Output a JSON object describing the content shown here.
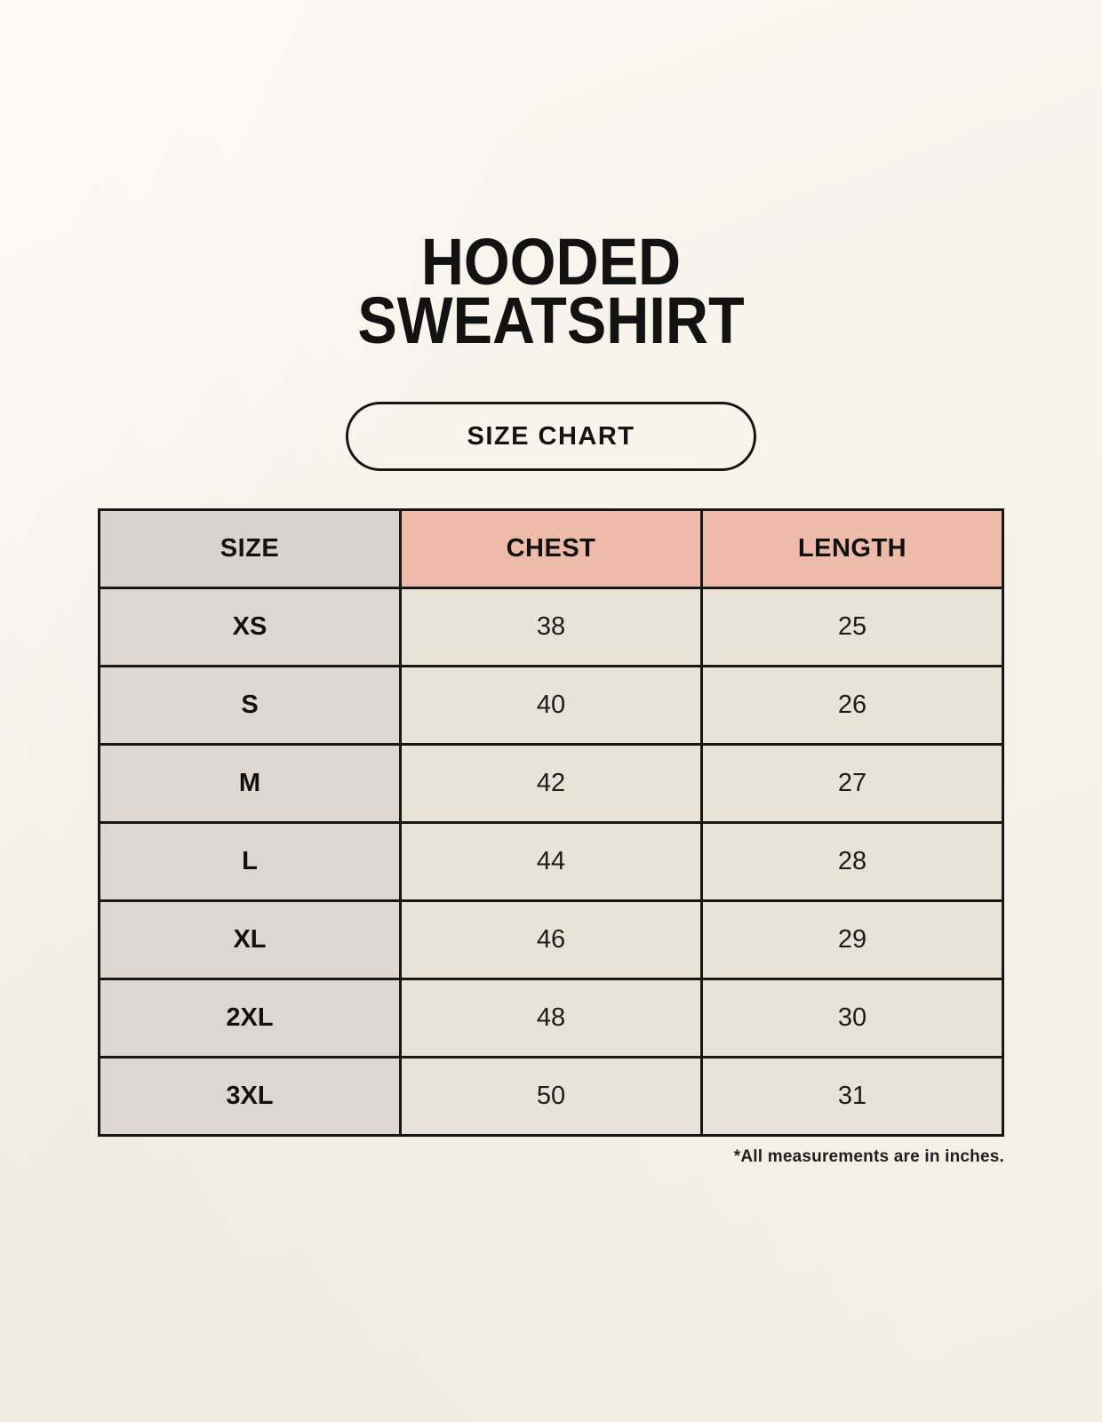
{
  "page": {
    "title_line1": "HOODED",
    "title_line2": "SWEATSHIRT",
    "badge_label": "SIZE CHART",
    "footnote": "*All measurements are in inches."
  },
  "chart_data": {
    "type": "table",
    "title": "HOODED SWEATSHIRT",
    "subtitle": "SIZE CHART",
    "columns": [
      "SIZE",
      "CHEST",
      "LENGTH"
    ],
    "rows": [
      {
        "size": "XS",
        "chest": 38,
        "length": 25
      },
      {
        "size": "S",
        "chest": 40,
        "length": 26
      },
      {
        "size": "M",
        "chest": 42,
        "length": 27
      },
      {
        "size": "L",
        "chest": 44,
        "length": 28
      },
      {
        "size": "XL",
        "chest": 46,
        "length": 29
      },
      {
        "size": "2XL",
        "chest": 48,
        "length": 30
      },
      {
        "size": "3XL",
        "chest": 50,
        "length": 31
      }
    ],
    "units": "inches",
    "note": "*All measurements are in inches."
  },
  "colors": {
    "background": "#f7f4ec",
    "header_accent": "#eebbaa",
    "header_size_cell": "#d9d3ce",
    "size_column": "#ded7d1",
    "data_cell": "#e9e2d7",
    "border": "#171717",
    "text": "#111111"
  }
}
